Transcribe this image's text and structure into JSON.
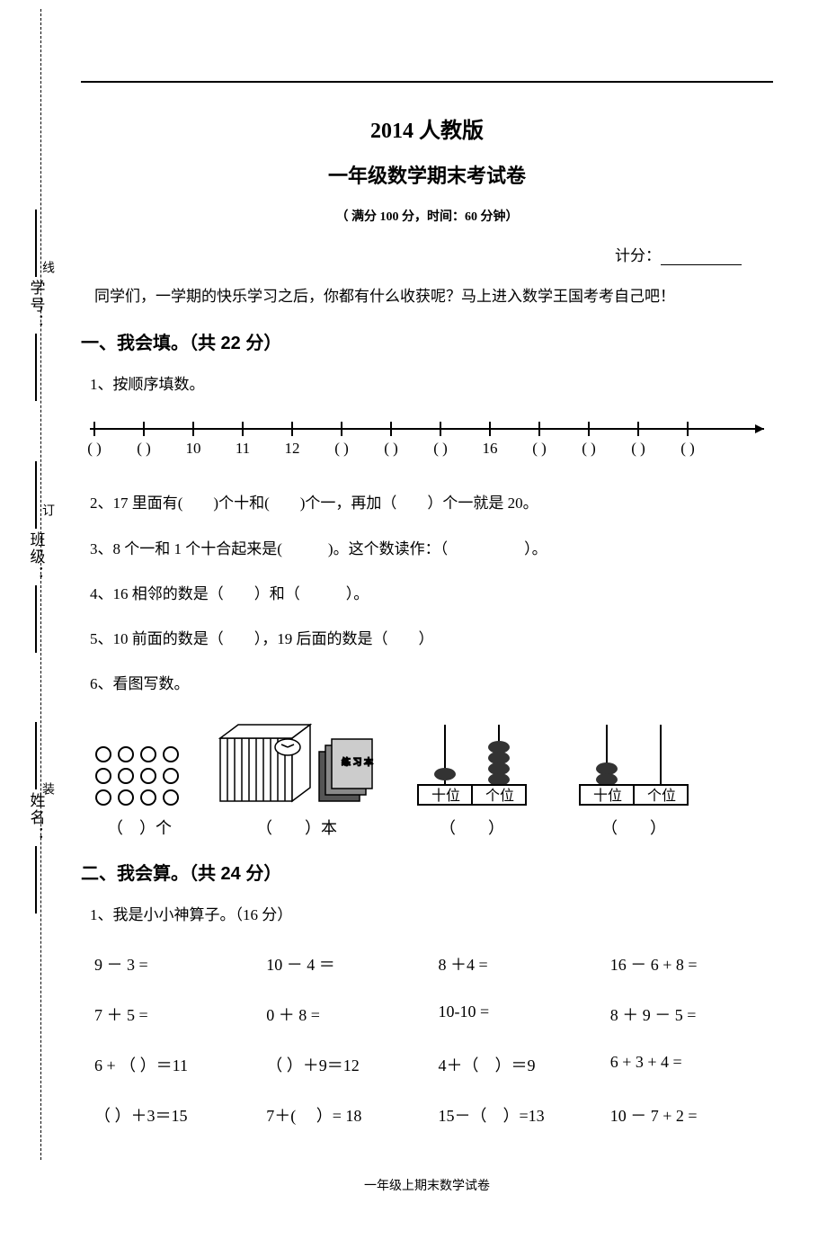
{
  "side": {
    "xuehao": "学号：",
    "banji": "班级：",
    "xingming": "姓名：",
    "xian": "线",
    "ding": "订",
    "zhuang": "装"
  },
  "header": {
    "title_main": "2014 人教版",
    "title_sub": "一年级数学期末考试卷",
    "title_meta": "（ 满分 100 分，时间：60 分钟）",
    "score_label": "计分："
  },
  "intro": "同学们，一学期的快乐学习之后，你都有什么收获呢？马上进入数学王国考考自己吧！",
  "section1": {
    "title": "一、我会填。（共 22 分）",
    "q1": "1、按顺序填数。",
    "number_line": {
      "slots": [
        "(   )",
        "(   )",
        "10",
        "11",
        "12",
        "(   )",
        "(   )",
        "(   )",
        "16",
        "(   )",
        "(   )",
        "(   )",
        "(   )"
      ]
    },
    "q2": "2、17 里面有(　　)个十和(　　)个一，再加（　　）个一就是 20。",
    "q3": "3、8 个一和 1 个十合起来是(　　　)。这个数读作：（　　　　　）。",
    "q4": "4、16 相邻的数是（　　）和（　　　）。",
    "q5": "5、10 前面的数是（　　），19 后面的数是（　　）",
    "q6": "6、看图写数。",
    "q6_labels": {
      "a": "（　）个",
      "b": "（　　）本",
      "c": "（　　）",
      "d": "（　　）",
      "shi": "十位",
      "ge": "个位"
    }
  },
  "section2": {
    "title": "二、我会算。（共 24 分）",
    "q1": "1、我是小小神算子。（16 分）",
    "calc": [
      "9 － 3 =",
      "10 － 4 ＝",
      "8 ＋4 =",
      "16 － 6 + 8 =",
      "7 ＋ 5 =",
      "0 ＋ 8 =",
      "10-10 =",
      "8 ＋ 9 － 5 =",
      "6 + （ ）＝11",
      "（ ）＋9＝12",
      "4＋（　）＝9",
      "6 + 3 + 4 =",
      "（ ）＋3＝15",
      "7＋(　 ）= 18",
      "15－（　）=13",
      "10 － 7 + 2 ="
    ]
  },
  "footer": "一年级上期末数学试卷"
}
